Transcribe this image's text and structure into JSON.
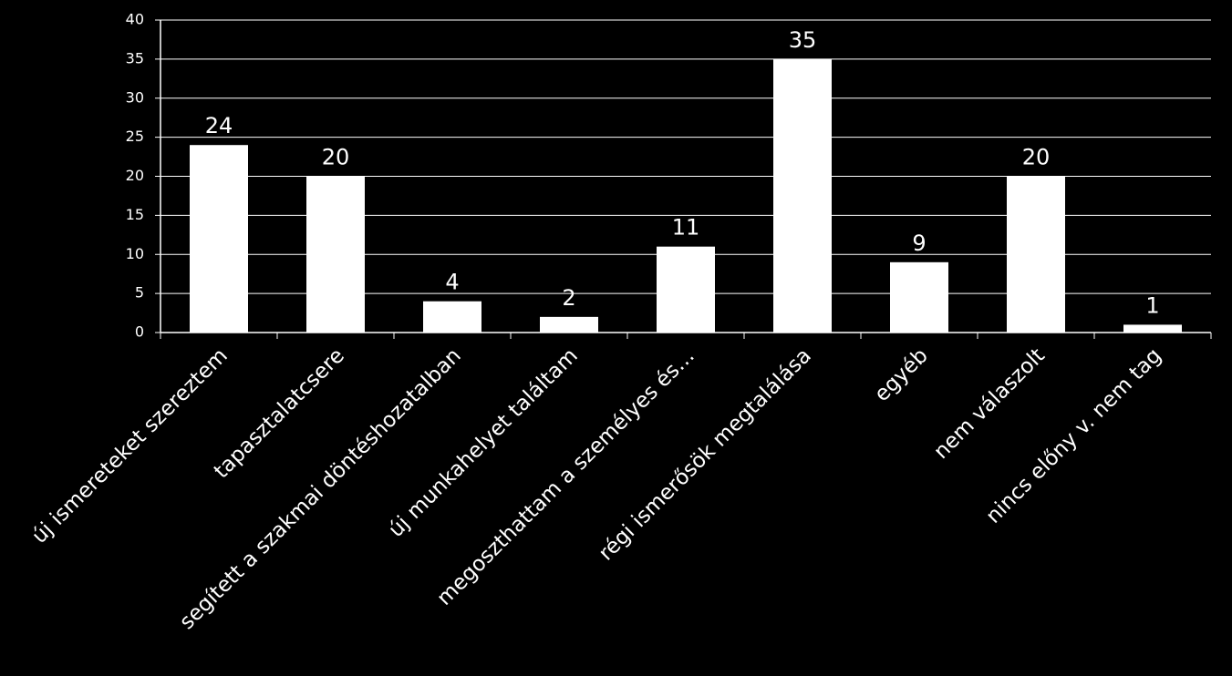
{
  "chart_data": {
    "type": "bar",
    "categories": [
      "új ismereteket szereztem",
      "tapasztalatcsere",
      "segített a szakmai döntéshozatalban",
      "új munkahelyet találtam",
      "megoszthattam a személyes és…",
      "régi ismerősök megtalálása",
      "egyéb",
      "nem válaszolt",
      "nincs előny v. nem tag"
    ],
    "values": [
      24,
      20,
      4,
      2,
      11,
      35,
      9,
      20,
      1
    ],
    "color": "#ffffff",
    "ylim": [
      0,
      40
    ],
    "yticks": [
      0,
      5,
      10,
      15,
      20,
      25,
      30,
      35,
      40
    ],
    "grid": true
  }
}
